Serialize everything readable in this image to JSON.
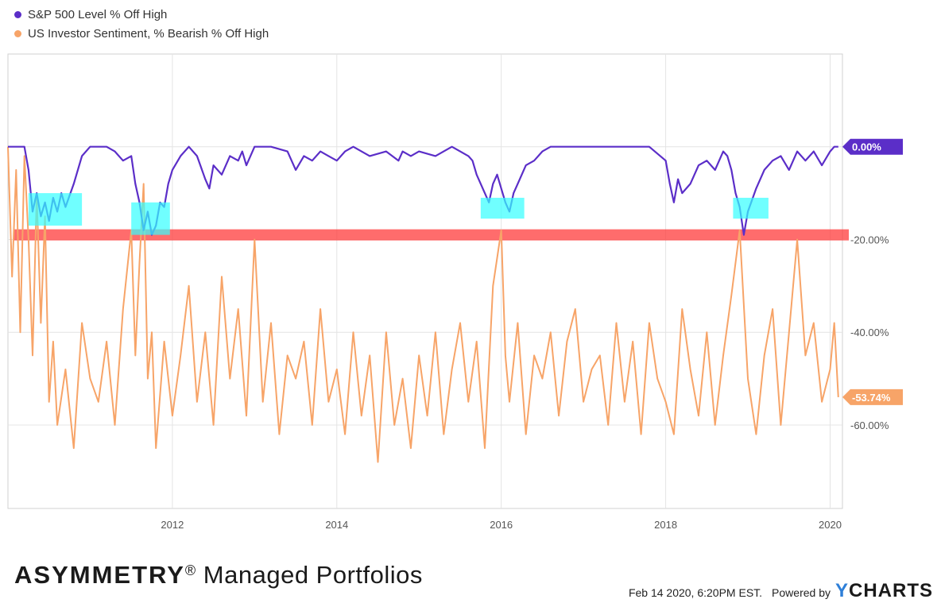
{
  "chart_data": {
    "type": "line",
    "title": "",
    "xlabel": "",
    "ylabel": "",
    "x_ticks": [
      "2012",
      "2014",
      "2016",
      "2018",
      "2020"
    ],
    "y_ticks": [
      "0.00%",
      "-20.00%",
      "-40.00%",
      "-60.00%"
    ],
    "ylim": [
      -78,
      20
    ],
    "xlim": [
      2010.0,
      2020.15
    ],
    "grid": true,
    "legend_position": "top-left",
    "series": [
      {
        "name": "S&P 500 Level % Off High",
        "color": "#5b2ec8",
        "last_value_label": "0.00%",
        "x": [
          2010.0,
          2010.2,
          2010.25,
          2010.3,
          2010.35,
          2010.4,
          2010.45,
          2010.5,
          2010.55,
          2010.6,
          2010.65,
          2010.7,
          2010.8,
          2010.9,
          2011.0,
          2011.2,
          2011.3,
          2011.4,
          2011.5,
          2011.55,
          2011.6,
          2011.65,
          2011.7,
          2011.75,
          2011.8,
          2011.85,
          2011.9,
          2011.95,
          2012.0,
          2012.1,
          2012.2,
          2012.3,
          2012.4,
          2012.45,
          2012.5,
          2012.6,
          2012.7,
          2012.8,
          2012.85,
          2012.9,
          2013.0,
          2013.2,
          2013.4,
          2013.5,
          2013.6,
          2013.7,
          2013.8,
          2013.9,
          2014.0,
          2014.1,
          2014.2,
          2014.4,
          2014.6,
          2014.75,
          2014.8,
          2014.9,
          2015.0,
          2015.2,
          2015.4,
          2015.5,
          2015.6,
          2015.65,
          2015.7,
          2015.8,
          2015.85,
          2015.9,
          2015.95,
          2016.0,
          2016.05,
          2016.1,
          2016.15,
          2016.2,
          2016.3,
          2016.4,
          2016.5,
          2016.6,
          2016.8,
          2017.0,
          2017.4,
          2017.8,
          2018.0,
          2018.05,
          2018.1,
          2018.15,
          2018.2,
          2018.3,
          2018.4,
          2018.5,
          2018.6,
          2018.7,
          2018.75,
          2018.8,
          2018.85,
          2018.9,
          2018.95,
          2019.0,
          2019.1,
          2019.2,
          2019.3,
          2019.4,
          2019.5,
          2019.6,
          2019.7,
          2019.8,
          2019.9,
          2020.0,
          2020.05,
          2020.1
        ],
        "values": [
          0,
          0,
          -5,
          -14,
          -10,
          -15,
          -12,
          -16,
          -11,
          -14,
          -10,
          -13,
          -8,
          -2,
          0,
          0,
          -1,
          -3,
          -2,
          -8,
          -12,
          -18,
          -14,
          -19,
          -17,
          -12,
          -13,
          -8,
          -5,
          -2,
          0,
          -2,
          -7,
          -9,
          -4,
          -6,
          -2,
          -3,
          -1,
          -4,
          0,
          0,
          -1,
          -5,
          -2,
          -3,
          -1,
          -2,
          -3,
          -1,
          0,
          -2,
          -1,
          -3,
          -1,
          -2,
          -1,
          -2,
          0,
          -1,
          -2,
          -3,
          -6,
          -10,
          -12,
          -8,
          -6,
          -9,
          -12,
          -14,
          -10,
          -8,
          -4,
          -3,
          -1,
          0,
          0,
          0,
          0,
          0,
          -3,
          -8,
          -12,
          -7,
          -10,
          -8,
          -4,
          -3,
          -5,
          -1,
          -2,
          -5,
          -10,
          -13,
          -19,
          -14,
          -9,
          -5,
          -3,
          -2,
          -5,
          -1,
          -3,
          -1,
          -4,
          -1,
          0,
          0
        ]
      },
      {
        "name": "US Investor Sentiment, % Bearish % Off High",
        "color": "#f7a468",
        "last_value_label": "-53.74%",
        "x": [
          2010.0,
          2010.05,
          2010.1,
          2010.15,
          2010.2,
          2010.25,
          2010.3,
          2010.35,
          2010.4,
          2010.45,
          2010.5,
          2010.55,
          2010.6,
          2010.7,
          2010.8,
          2010.9,
          2011.0,
          2011.1,
          2011.2,
          2011.3,
          2011.4,
          2011.5,
          2011.55,
          2011.6,
          2011.65,
          2011.7,
          2011.75,
          2011.8,
          2011.9,
          2012.0,
          2012.1,
          2012.2,
          2012.3,
          2012.4,
          2012.5,
          2012.6,
          2012.7,
          2012.8,
          2012.9,
          2013.0,
          2013.1,
          2013.2,
          2013.3,
          2013.4,
          2013.5,
          2013.6,
          2013.7,
          2013.8,
          2013.9,
          2014.0,
          2014.1,
          2014.2,
          2014.3,
          2014.4,
          2014.5,
          2014.6,
          2014.7,
          2014.8,
          2014.9,
          2015.0,
          2015.1,
          2015.2,
          2015.3,
          2015.4,
          2015.5,
          2015.6,
          2015.7,
          2015.8,
          2015.9,
          2016.0,
          2016.05,
          2016.1,
          2016.2,
          2016.3,
          2016.4,
          2016.5,
          2016.6,
          2016.7,
          2016.8,
          2016.9,
          2017.0,
          2017.1,
          2017.2,
          2017.3,
          2017.4,
          2017.5,
          2017.6,
          2017.7,
          2017.8,
          2017.9,
          2018.0,
          2018.1,
          2018.2,
          2018.3,
          2018.4,
          2018.5,
          2018.6,
          2018.7,
          2018.8,
          2018.9,
          2019.0,
          2019.1,
          2019.2,
          2019.3,
          2019.4,
          2019.5,
          2019.6,
          2019.7,
          2019.8,
          2019.9,
          2020.0,
          2020.05,
          2020.1
        ],
        "values": [
          0,
          -28,
          -5,
          -40,
          -2,
          -20,
          -45,
          -10,
          -38,
          -15,
          -55,
          -42,
          -60,
          -48,
          -65,
          -38,
          -50,
          -55,
          -42,
          -60,
          -35,
          -18,
          -45,
          -25,
          -8,
          -50,
          -40,
          -65,
          -42,
          -58,
          -45,
          -30,
          -55,
          -40,
          -60,
          -28,
          -50,
          -35,
          -58,
          -20,
          -55,
          -38,
          -62,
          -45,
          -50,
          -42,
          -60,
          -35,
          -55,
          -48,
          -62,
          -40,
          -58,
          -45,
          -68,
          -40,
          -60,
          -50,
          -65,
          -45,
          -58,
          -40,
          -62,
          -48,
          -38,
          -55,
          -42,
          -65,
          -30,
          -18,
          -45,
          -55,
          -38,
          -62,
          -45,
          -50,
          -40,
          -58,
          -42,
          -35,
          -55,
          -48,
          -45,
          -60,
          -38,
          -55,
          -42,
          -62,
          -38,
          -50,
          -55,
          -62,
          -35,
          -48,
          -58,
          -40,
          -60,
          -45,
          -32,
          -18,
          -50,
          -62,
          -45,
          -35,
          -60,
          -40,
          -20,
          -45,
          -38,
          -55,
          -48,
          -38,
          -54
        ]
      }
    ],
    "annotations": [
      {
        "type": "band",
        "color": "#ff3b3b",
        "y": -19
      },
      {
        "type": "box",
        "color": "#33ffff",
        "x0": 2010.25,
        "x1": 2010.9,
        "y0": -10,
        "y1": -17
      },
      {
        "type": "box",
        "color": "#33ffff",
        "x0": 2011.5,
        "x1": 2011.97,
        "y0": -12,
        "y1": -19
      },
      {
        "type": "box",
        "color": "#33ffff",
        "x0": 2015.75,
        "x1": 2016.28,
        "y0": -11,
        "y1": -15.5
      },
      {
        "type": "box",
        "color": "#33ffff",
        "x0": 2018.82,
        "x1": 2019.25,
        "y0": -11,
        "y1": -15.5
      }
    ]
  },
  "branding": {
    "brand_bold": "ASYMMETRY",
    "brand_reg": "®",
    "brand_rest": " Managed Portfolios",
    "timestamp": "Feb 14 2020, 6:20PM EST.",
    "powered_by": "Powered by",
    "ycharts_y": "Y",
    "ycharts_rest": "CHARTS"
  }
}
